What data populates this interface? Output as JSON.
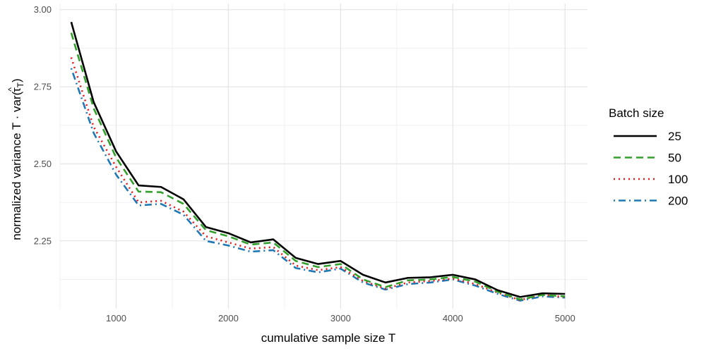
{
  "chart_data": {
    "type": "line",
    "xlabel": "cumulative sample size T",
    "ylabel_prefix": "normalized variance   T · var(",
    "ylabel_symbol": "τ",
    "ylabel_hat": "^",
    "ylabel_subscript": "T",
    "ylabel_suffix": ")",
    "xlim": [
      500,
      5200
    ],
    "ylim": [
      2.03,
      3.02
    ],
    "xticks": [
      1000,
      2000,
      3000,
      4000,
      5000
    ],
    "xtick_labels": [
      "1000",
      "2000",
      "3000",
      "4000",
      "5000"
    ],
    "yticks": [
      2.25,
      2.5,
      2.75,
      3.0
    ],
    "ytick_labels": [
      "2.25",
      "2.50",
      "2.75",
      "3.00"
    ],
    "grid": true,
    "legend_placement": "right",
    "legend_title": "Batch size",
    "x": [
      600,
      800,
      1000,
      1200,
      1400,
      1600,
      1800,
      2000,
      2200,
      2400,
      2600,
      2800,
      3000,
      3200,
      3400,
      3600,
      3800,
      4000,
      4200,
      4400,
      4600,
      4800,
      5000
    ],
    "series": [
      {
        "name": "25",
        "color": "#000000",
        "dash": "solid",
        "values": [
          2.96,
          2.7,
          2.54,
          2.43,
          2.425,
          2.385,
          2.295,
          2.275,
          2.245,
          2.255,
          2.195,
          2.175,
          2.185,
          2.14,
          2.115,
          2.13,
          2.132,
          2.14,
          2.125,
          2.09,
          2.068,
          2.08,
          2.078
        ]
      },
      {
        "name": "50",
        "color": "#33a02c",
        "dash": "dashed",
        "values": [
          2.925,
          2.68,
          2.52,
          2.41,
          2.408,
          2.37,
          2.285,
          2.265,
          2.238,
          2.245,
          2.185,
          2.165,
          2.175,
          2.125,
          2.1,
          2.122,
          2.125,
          2.133,
          2.118,
          2.085,
          2.06,
          2.075,
          2.07
        ]
      },
      {
        "name": "100",
        "color": "#e31a1c",
        "dash": "dotted",
        "values": [
          2.845,
          2.62,
          2.49,
          2.375,
          2.38,
          2.345,
          2.265,
          2.245,
          2.225,
          2.23,
          2.17,
          2.155,
          2.165,
          2.12,
          2.095,
          2.115,
          2.12,
          2.128,
          2.11,
          2.082,
          2.058,
          2.075,
          2.068
        ]
      },
      {
        "name": "200",
        "color": "#1f78b4",
        "dash": "dotdash",
        "values": [
          2.81,
          2.6,
          2.465,
          2.365,
          2.37,
          2.335,
          2.25,
          2.235,
          2.215,
          2.22,
          2.162,
          2.148,
          2.16,
          2.115,
          2.092,
          2.11,
          2.115,
          2.125,
          2.105,
          2.078,
          2.056,
          2.07,
          2.066
        ]
      }
    ]
  }
}
